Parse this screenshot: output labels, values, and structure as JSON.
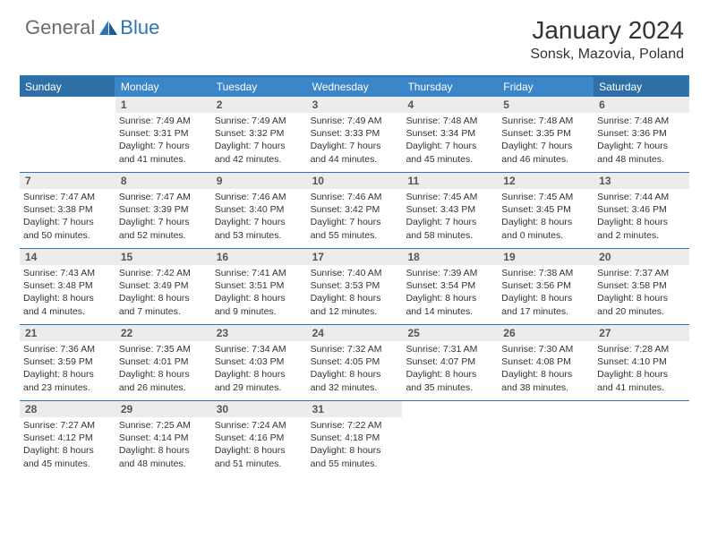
{
  "logo": {
    "part1": "General",
    "part2": "Blue"
  },
  "title": "January 2024",
  "location": "Sonsk, Mazovia, Poland",
  "colors": {
    "header_bar": "#3a86c8",
    "header_bar_weekend": "#2e6fa8",
    "rule": "#2e75b6",
    "daynum_bg": "#ececec",
    "logo_gray": "#6b6b6b",
    "logo_blue": "#2e75b6"
  },
  "weekdays": [
    "Sunday",
    "Monday",
    "Tuesday",
    "Wednesday",
    "Thursday",
    "Friday",
    "Saturday"
  ],
  "weekend_indices": [
    0,
    6
  ],
  "weeks": [
    [
      null,
      {
        "n": "1",
        "sunrise": "7:49 AM",
        "sunset": "3:31 PM",
        "daylight": "7 hours and 41 minutes."
      },
      {
        "n": "2",
        "sunrise": "7:49 AM",
        "sunset": "3:32 PM",
        "daylight": "7 hours and 42 minutes."
      },
      {
        "n": "3",
        "sunrise": "7:49 AM",
        "sunset": "3:33 PM",
        "daylight": "7 hours and 44 minutes."
      },
      {
        "n": "4",
        "sunrise": "7:48 AM",
        "sunset": "3:34 PM",
        "daylight": "7 hours and 45 minutes."
      },
      {
        "n": "5",
        "sunrise": "7:48 AM",
        "sunset": "3:35 PM",
        "daylight": "7 hours and 46 minutes."
      },
      {
        "n": "6",
        "sunrise": "7:48 AM",
        "sunset": "3:36 PM",
        "daylight": "7 hours and 48 minutes."
      }
    ],
    [
      {
        "n": "7",
        "sunrise": "7:47 AM",
        "sunset": "3:38 PM",
        "daylight": "7 hours and 50 minutes."
      },
      {
        "n": "8",
        "sunrise": "7:47 AM",
        "sunset": "3:39 PM",
        "daylight": "7 hours and 52 minutes."
      },
      {
        "n": "9",
        "sunrise": "7:46 AM",
        "sunset": "3:40 PM",
        "daylight": "7 hours and 53 minutes."
      },
      {
        "n": "10",
        "sunrise": "7:46 AM",
        "sunset": "3:42 PM",
        "daylight": "7 hours and 55 minutes."
      },
      {
        "n": "11",
        "sunrise": "7:45 AM",
        "sunset": "3:43 PM",
        "daylight": "7 hours and 58 minutes."
      },
      {
        "n": "12",
        "sunrise": "7:45 AM",
        "sunset": "3:45 PM",
        "daylight": "8 hours and 0 minutes."
      },
      {
        "n": "13",
        "sunrise": "7:44 AM",
        "sunset": "3:46 PM",
        "daylight": "8 hours and 2 minutes."
      }
    ],
    [
      {
        "n": "14",
        "sunrise": "7:43 AM",
        "sunset": "3:48 PM",
        "daylight": "8 hours and 4 minutes."
      },
      {
        "n": "15",
        "sunrise": "7:42 AM",
        "sunset": "3:49 PM",
        "daylight": "8 hours and 7 minutes."
      },
      {
        "n": "16",
        "sunrise": "7:41 AM",
        "sunset": "3:51 PM",
        "daylight": "8 hours and 9 minutes."
      },
      {
        "n": "17",
        "sunrise": "7:40 AM",
        "sunset": "3:53 PM",
        "daylight": "8 hours and 12 minutes."
      },
      {
        "n": "18",
        "sunrise": "7:39 AM",
        "sunset": "3:54 PM",
        "daylight": "8 hours and 14 minutes."
      },
      {
        "n": "19",
        "sunrise": "7:38 AM",
        "sunset": "3:56 PM",
        "daylight": "8 hours and 17 minutes."
      },
      {
        "n": "20",
        "sunrise": "7:37 AM",
        "sunset": "3:58 PM",
        "daylight": "8 hours and 20 minutes."
      }
    ],
    [
      {
        "n": "21",
        "sunrise": "7:36 AM",
        "sunset": "3:59 PM",
        "daylight": "8 hours and 23 minutes."
      },
      {
        "n": "22",
        "sunrise": "7:35 AM",
        "sunset": "4:01 PM",
        "daylight": "8 hours and 26 minutes."
      },
      {
        "n": "23",
        "sunrise": "7:34 AM",
        "sunset": "4:03 PM",
        "daylight": "8 hours and 29 minutes."
      },
      {
        "n": "24",
        "sunrise": "7:32 AM",
        "sunset": "4:05 PM",
        "daylight": "8 hours and 32 minutes."
      },
      {
        "n": "25",
        "sunrise": "7:31 AM",
        "sunset": "4:07 PM",
        "daylight": "8 hours and 35 minutes."
      },
      {
        "n": "26",
        "sunrise": "7:30 AM",
        "sunset": "4:08 PM",
        "daylight": "8 hours and 38 minutes."
      },
      {
        "n": "27",
        "sunrise": "7:28 AM",
        "sunset": "4:10 PM",
        "daylight": "8 hours and 41 minutes."
      }
    ],
    [
      {
        "n": "28",
        "sunrise": "7:27 AM",
        "sunset": "4:12 PM",
        "daylight": "8 hours and 45 minutes."
      },
      {
        "n": "29",
        "sunrise": "7:25 AM",
        "sunset": "4:14 PM",
        "daylight": "8 hours and 48 minutes."
      },
      {
        "n": "30",
        "sunrise": "7:24 AM",
        "sunset": "4:16 PM",
        "daylight": "8 hours and 51 minutes."
      },
      {
        "n": "31",
        "sunrise": "7:22 AM",
        "sunset": "4:18 PM",
        "daylight": "8 hours and 55 minutes."
      },
      null,
      null,
      null
    ]
  ],
  "labels": {
    "sunrise": "Sunrise:",
    "sunset": "Sunset:",
    "daylight": "Daylight:"
  }
}
